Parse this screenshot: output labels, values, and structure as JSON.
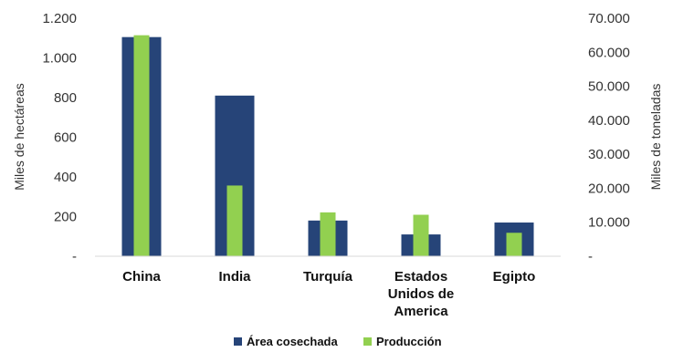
{
  "chart_data": {
    "type": "bar",
    "categories": [
      [
        "China"
      ],
      [
        "India"
      ],
      [
        "Turquía"
      ],
      [
        "Estados",
        "Unidos de",
        "America"
      ],
      [
        "Egipto"
      ]
    ],
    "series": [
      {
        "name": "Área cosechada",
        "axis": "left",
        "values": [
          1105,
          810,
          180,
          110,
          170
        ],
        "color": "#264478"
      },
      {
        "name": "Producción",
        "axis": "right",
        "values": [
          65000,
          20800,
          12900,
          12200,
          6900
        ],
        "color": "#92d050"
      }
    ],
    "y_left": {
      "label": "Miles de hectáreas",
      "range": [
        0,
        1200
      ],
      "ticks": [
        {
          "value": 0,
          "label": "-"
        },
        {
          "value": 200,
          "label": "200"
        },
        {
          "value": 400,
          "label": "400"
        },
        {
          "value": 600,
          "label": "600"
        },
        {
          "value": 800,
          "label": "800"
        },
        {
          "value": 1000,
          "label": "1.000"
        },
        {
          "value": 1200,
          "label": "1.200"
        }
      ]
    },
    "y_right": {
      "label": "Miles de toneladas",
      "range": [
        0,
        70000
      ],
      "ticks": [
        {
          "value": 0,
          "label": "-"
        },
        {
          "value": 10000,
          "label": "10.000"
        },
        {
          "value": 20000,
          "label": "20.000"
        },
        {
          "value": 30000,
          "label": "30.000"
        },
        {
          "value": 40000,
          "label": "40.000"
        },
        {
          "value": 50000,
          "label": "50.000"
        },
        {
          "value": 60000,
          "label": "60.000"
        },
        {
          "value": 70000,
          "label": "70.000"
        }
      ]
    },
    "legend": {
      "position": "bottom"
    },
    "grid": false
  }
}
